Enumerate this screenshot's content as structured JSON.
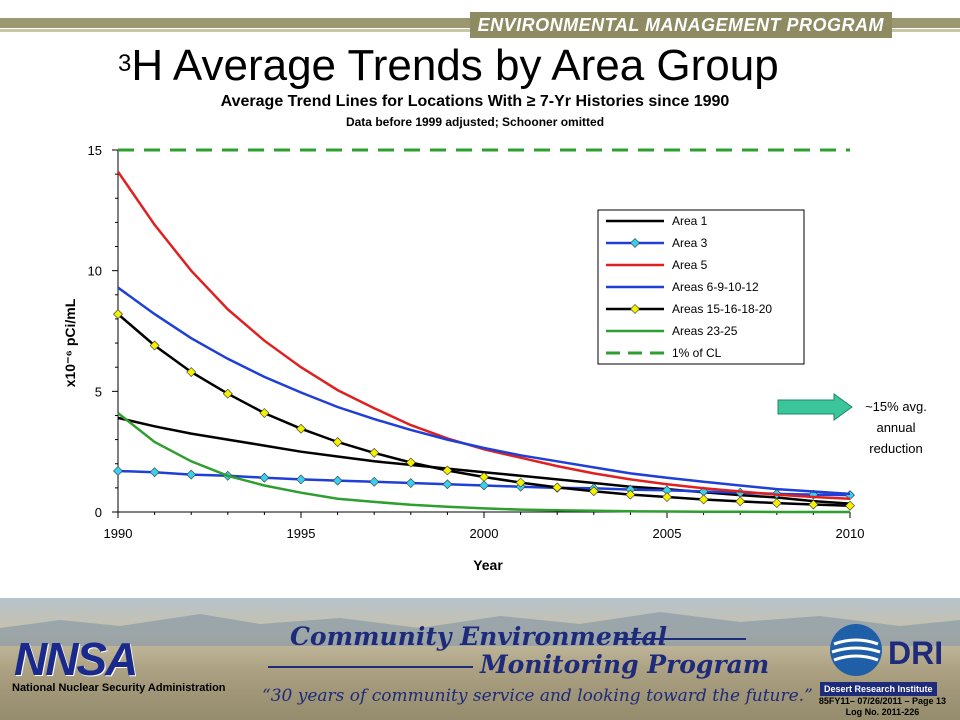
{
  "header": {
    "program_title": "ENVIRONMENTAL MANAGEMENT PROGRAM",
    "slide_title_sup": "3",
    "slide_title_main": "H Average Trends by Area Group"
  },
  "chart_data": {
    "type": "line",
    "title": "Average Trend Lines for Locations With ≥ 7-Yr Histories since 1990",
    "subtitle": "Data before  1999 adjusted; Schooner omitted",
    "xlabel": "Year",
    "ylabel": "x10⁻⁶ pCi/mL",
    "xlim": [
      1990,
      2010
    ],
    "ylim": [
      0,
      15
    ],
    "xticks": [
      1990,
      1995,
      2000,
      2005,
      2010
    ],
    "yticks": [
      0,
      5,
      10,
      15
    ],
    "legend_position": "upper-right",
    "x": [
      1990,
      1991,
      1992,
      1993,
      1994,
      1995,
      1996,
      1997,
      1998,
      1999,
      2000,
      2001,
      2002,
      2003,
      2004,
      2005,
      2006,
      2007,
      2008,
      2009,
      2010
    ],
    "series": [
      {
        "name": "Area 1",
        "color": "#000000",
        "style": "solid",
        "marker": "none",
        "values": [
          3.9,
          3.55,
          3.25,
          3.0,
          2.75,
          2.5,
          2.3,
          2.1,
          1.95,
          1.8,
          1.65,
          1.5,
          1.35,
          1.2,
          1.05,
          0.95,
          0.82,
          0.7,
          0.6,
          0.45,
          0.35
        ]
      },
      {
        "name": "Area 3",
        "color": "#1f3fd6",
        "style": "solid",
        "marker": "diamond-cyan",
        "values": [
          1.7,
          1.65,
          1.55,
          1.5,
          1.42,
          1.35,
          1.3,
          1.25,
          1.2,
          1.15,
          1.1,
          1.05,
          1.0,
          0.98,
          0.93,
          0.9,
          0.85,
          0.8,
          0.75,
          0.72,
          0.7
        ]
      },
      {
        "name": "Area 5",
        "color": "#e02020",
        "style": "solid",
        "marker": "none",
        "values": [
          14.1,
          11.9,
          10.0,
          8.4,
          7.1,
          6.0,
          5.05,
          4.3,
          3.6,
          3.05,
          2.6,
          2.25,
          1.9,
          1.6,
          1.35,
          1.15,
          0.98,
          0.85,
          0.72,
          0.62,
          0.55
        ]
      },
      {
        "name": "Areas 6-9-10-12",
        "color": "#1f3fd6",
        "style": "solid",
        "marker": "none",
        "values": [
          9.3,
          8.2,
          7.2,
          6.35,
          5.6,
          4.95,
          4.35,
          3.85,
          3.4,
          3.0,
          2.65,
          2.35,
          2.1,
          1.85,
          1.6,
          1.42,
          1.25,
          1.1,
          0.95,
          0.85,
          0.75
        ]
      },
      {
        "name": "Areas 15-16-18-20",
        "color": "#000000",
        "style": "solid",
        "marker": "diamond-yellow",
        "values": [
          8.2,
          6.9,
          5.8,
          4.9,
          4.1,
          3.45,
          2.9,
          2.45,
          2.05,
          1.72,
          1.45,
          1.22,
          1.02,
          0.86,
          0.72,
          0.62,
          0.52,
          0.44,
          0.37,
          0.31,
          0.26
        ]
      },
      {
        "name": "Areas 23-25",
        "color": "#2e9e2e",
        "style": "solid",
        "marker": "none",
        "values": [
          4.1,
          2.9,
          2.1,
          1.5,
          1.1,
          0.8,
          0.55,
          0.42,
          0.3,
          0.22,
          0.15,
          0.1,
          0.07,
          0.05,
          0.03,
          0.02,
          0.01,
          0.01,
          0.0,
          0.0,
          0.0
        ]
      },
      {
        "name": "1% of CL",
        "color": "#2e9e2e",
        "style": "dashed",
        "marker": "none",
        "values": [
          15,
          15,
          15,
          15,
          15,
          15,
          15,
          15,
          15,
          15,
          15,
          15,
          15,
          15,
          15,
          15,
          15,
          15,
          15,
          15,
          15
        ]
      }
    ],
    "annotation": {
      "lines": [
        "~15% avg.",
        "annual",
        "reduction"
      ],
      "arrow_color": "#3cc49a"
    }
  },
  "footer": {
    "nnsa_logo": "NNSA",
    "nnsa_name": "National Nuclear Security Administration",
    "program_line1": "Community Environmental",
    "program_line2": "Monitoring Program",
    "quote": "“30 years of community service and looking toward the future.”",
    "dri_logo": "DRI",
    "dri_name": "Desert Research Institute",
    "page_info_line1": "85FY11– 07/26/2011 – Page 13",
    "page_info_line2": "Log No. 2011-226"
  }
}
